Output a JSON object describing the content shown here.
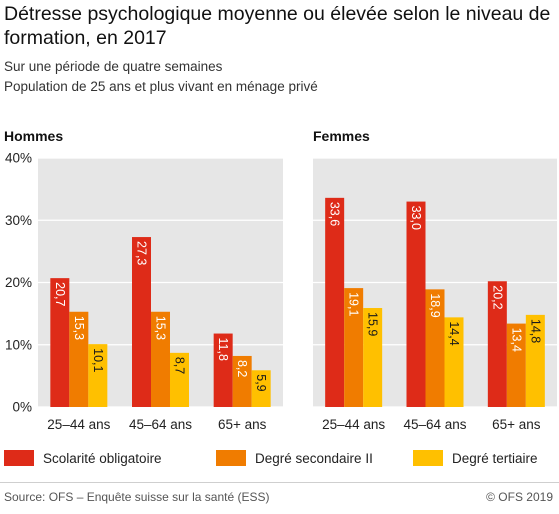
{
  "header": {
    "title": "Détresse psychologique moyenne ou élevée selon le niveau de formation, en 2017",
    "subtitle_lines": [
      "Sur une période de quatre semaines",
      "Population de 25 ans et plus vivant en ménage privé"
    ]
  },
  "chart_data": {
    "type": "bar",
    "orientation": "vertical",
    "value_label_style": "rotated-inside-bars",
    "grid": true,
    "ylim": [
      0,
      40
    ],
    "yticks": [
      "0%",
      "10%",
      "20%",
      "30%",
      "40%"
    ],
    "categories": [
      "25–44 ans",
      "45–64 ans",
      "65+ ans"
    ],
    "legend": {
      "placement": "bottom",
      "entries": [
        "Scolarité obligatoire",
        "Degré secondaire II",
        "Degré tertiaire"
      ]
    },
    "colors": [
      "#de2b18",
      "#f07c00",
      "#ffc000"
    ],
    "panels": [
      {
        "title": "Hommes",
        "series": [
          {
            "name": "Scolarité obligatoire",
            "values": [
              20.7,
              27.3,
              11.8
            ],
            "labels": [
              "20,7",
              "27,3",
              "11,8"
            ]
          },
          {
            "name": "Degré secondaire II",
            "values": [
              15.3,
              15.3,
              8.2
            ],
            "labels": [
              "15,3",
              "15,3",
              "8,2"
            ]
          },
          {
            "name": "Degré tertiaire",
            "values": [
              10.1,
              8.7,
              5.9
            ],
            "labels": [
              "10,1",
              "8,7",
              "5,9"
            ]
          }
        ]
      },
      {
        "title": "Femmes",
        "series": [
          {
            "name": "Scolarité obligatoire",
            "values": [
              33.6,
              33.0,
              20.2
            ],
            "labels": [
              "33,6",
              "33,0",
              "20,2"
            ]
          },
          {
            "name": "Degré secondaire II",
            "values": [
              19.1,
              18.9,
              13.4
            ],
            "labels": [
              "19,1",
              "18,9",
              "13,4"
            ]
          },
          {
            "name": "Degré tertiaire",
            "values": [
              15.9,
              14.4,
              14.8
            ],
            "labels": [
              "15,9",
              "14,4",
              "14,8"
            ]
          }
        ]
      }
    ]
  },
  "footer": {
    "source": "Source: OFS – Enquête suisse sur la santé (ESS)",
    "copyright": "© OFS 2019"
  }
}
